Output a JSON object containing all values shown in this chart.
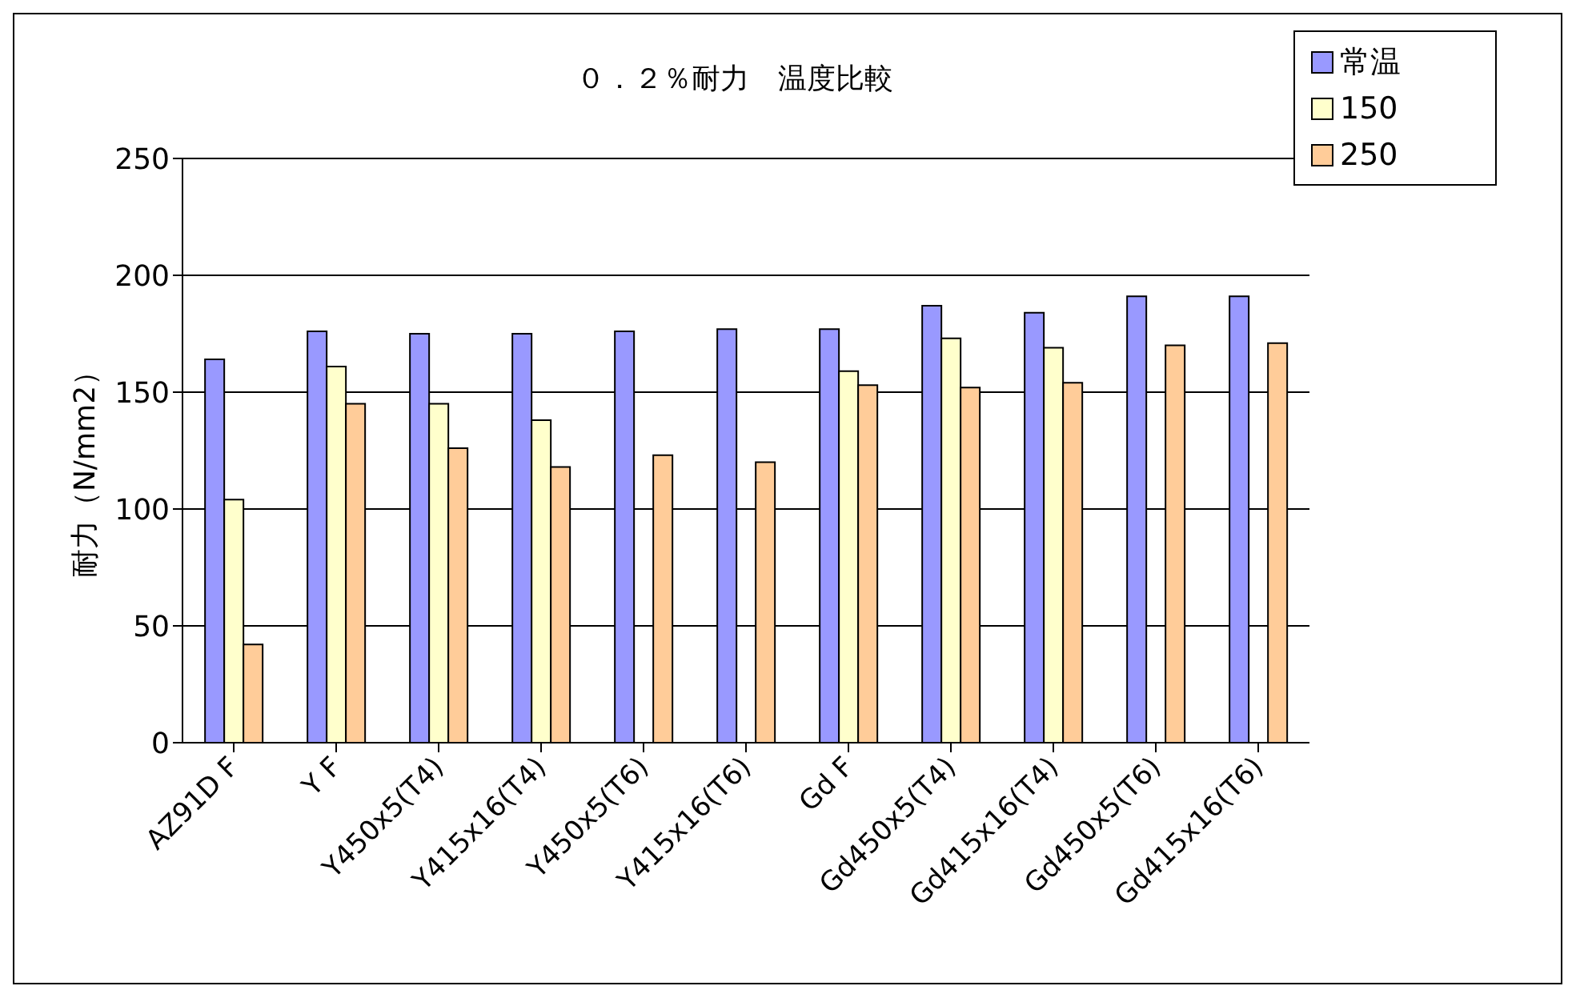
{
  "chart_data": {
    "type": "bar",
    "title": "０．２％耐力　温度比較",
    "ylabel": "耐力（N/mm2）",
    "categories": [
      "AZ91D F",
      "Y F",
      "Y450x5(T4)",
      "Y415x16(T4)",
      "Y450x5(T6)",
      "Y415x16(T6)",
      "Gd F",
      "Gd450x5(T4)",
      "Gd415x16(T4)",
      "Gd450x5(T6)",
      "Gd415x16(T6)"
    ],
    "series": [
      {
        "name": "常温",
        "color": "#9999ff",
        "values": [
          164,
          176,
          175,
          175,
          176,
          177,
          177,
          187,
          184,
          191,
          191
        ]
      },
      {
        "name": "150",
        "color": "#ffffcc",
        "values": [
          104,
          161,
          145,
          138,
          null,
          null,
          159,
          173,
          169,
          null,
          null
        ]
      },
      {
        "name": "250",
        "color": "#ffcc99",
        "values": [
          42,
          145,
          126,
          118,
          123,
          120,
          153,
          152,
          154,
          170,
          171
        ]
      }
    ],
    "ylim": [
      0,
      250
    ],
    "yticks": [
      0,
      50,
      100,
      150,
      200,
      250
    ],
    "grid": "y",
    "legend": "top right"
  }
}
